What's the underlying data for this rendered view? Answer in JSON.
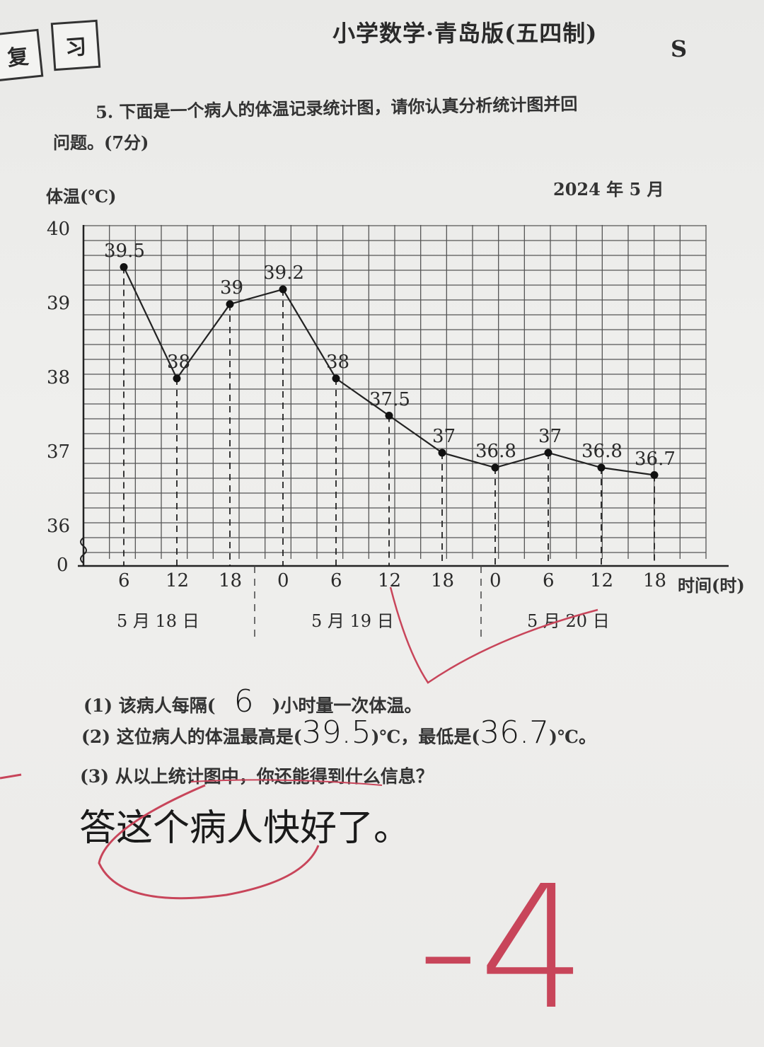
{
  "header": {
    "tab_left": "复",
    "tab_right": "习",
    "book_title": "小学数学·青岛版(五四制)",
    "series_letter": "S"
  },
  "question": {
    "line1": "5. 下面是一个病人的体温记录统计图，请你认真分析统计图并回",
    "line2": "问题。(7分)"
  },
  "chart_data": {
    "type": "line",
    "title": "",
    "date_note": "2024 年 5 月",
    "ylabel": "体温(℃)",
    "xlabel": "时间(时)",
    "y_ticks": [
      "40",
      "39",
      "38",
      "37",
      "36",
      "0"
    ],
    "ylim": [
      36,
      40
    ],
    "y_axis_break": true,
    "grid": true,
    "x_ticks": [
      "6",
      "12",
      "18",
      "0",
      "6",
      "12",
      "18",
      "0",
      "6",
      "12",
      "18"
    ],
    "x_hours": [
      6,
      12,
      18,
      24,
      30,
      36,
      42,
      48,
      54,
      60,
      66
    ],
    "day_labels": [
      "5 月 18 日",
      "5 月 19 日",
      "5 月 20 日"
    ],
    "values": [
      39.5,
      38,
      39,
      39.2,
      38,
      37.5,
      37,
      36.8,
      37,
      36.8,
      36.7
    ],
    "data_labels": [
      "39.5",
      "38",
      "39",
      "39.2",
      "38",
      "37.5",
      "37",
      "36.8",
      "37",
      "36.8",
      "36.7"
    ]
  },
  "sub_questions": [
    {
      "pre": "(1) 该病人每隔(",
      "answer": "6",
      "post": ")小时量一次体温。"
    },
    {
      "pre": "(2) 这位病人的体温最高是(",
      "answer": "39.5",
      "mid": ")℃，最低是(",
      "answer2": "36.7",
      "post": ")℃。"
    },
    {
      "pre": "(3) 从以上统计图中，你还能得到什么信息？"
    }
  ],
  "student_answer": "答这个病人快好了。",
  "grade_mark": "-4",
  "colors": {
    "ink": "#2a2a2a",
    "red_pen": "#c8455a",
    "paper": "#ecebe9"
  }
}
